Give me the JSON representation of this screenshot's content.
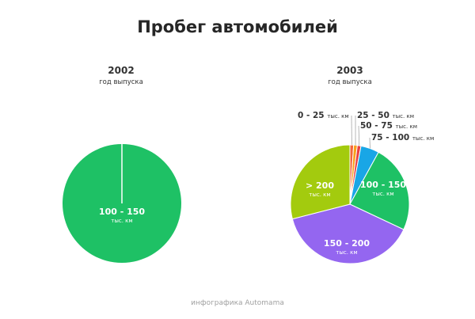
{
  "title": "Пробег автомобилей",
  "footer": "инфографика Automama",
  "chart_data": [
    {
      "type": "pie",
      "title": "2002",
      "subtitle": "год выпуска",
      "slices": [
        {
          "label": "100 - 150",
          "unit": "тыс. км",
          "value": 100,
          "color": "#1ec165"
        }
      ]
    },
    {
      "type": "pie",
      "title": "2003",
      "subtitle": "год выпуска",
      "slices": [
        {
          "label": "0 - 25",
          "unit": "тыс. км",
          "value": 1,
          "color": "#f2663a"
        },
        {
          "label": "25 - 50",
          "unit": "тыс. км",
          "value": 1,
          "color": "#f9a01b"
        },
        {
          "label": "50 - 75",
          "unit": "тыс. км",
          "value": 1,
          "color": "#e94040"
        },
        {
          "label": "75 - 100",
          "unit": "тыс. км",
          "value": 5,
          "color": "#19a6e6"
        },
        {
          "label": "100 - 150",
          "unit": "тыс. км",
          "value": 24,
          "color": "#1ec165"
        },
        {
          "label": "150 - 200",
          "unit": "тыс. км",
          "value": 39,
          "color": "#9466f0"
        },
        {
          "label": "> 200",
          "unit": "тыс. км",
          "value": 29,
          "color": "#a3cb0e"
        }
      ]
    }
  ]
}
